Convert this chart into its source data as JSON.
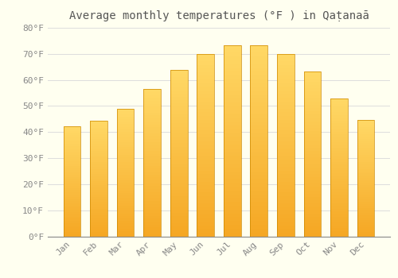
{
  "title": "Average monthly temperatures (°F ) in Qaṭanaā",
  "months": [
    "Jan",
    "Feb",
    "Mar",
    "Apr",
    "May",
    "Jun",
    "Jul",
    "Aug",
    "Sep",
    "Oct",
    "Nov",
    "Dec"
  ],
  "values": [
    42.2,
    44.4,
    48.9,
    56.5,
    63.7,
    70.0,
    73.4,
    73.4,
    70.0,
    63.1,
    52.9,
    44.6
  ],
  "bar_color_bottom": "#F5A623",
  "bar_color_top": "#FFD966",
  "bar_edge_color": "#CC8800",
  "background_color": "#FFFFF0",
  "ylim": [
    0,
    80
  ],
  "yticks": [
    0,
    10,
    20,
    30,
    40,
    50,
    60,
    70,
    80
  ],
  "ylabel_suffix": "°F",
  "grid_color": "#DDDDDD",
  "title_fontsize": 10,
  "tick_fontsize": 8,
  "bar_width": 0.65
}
